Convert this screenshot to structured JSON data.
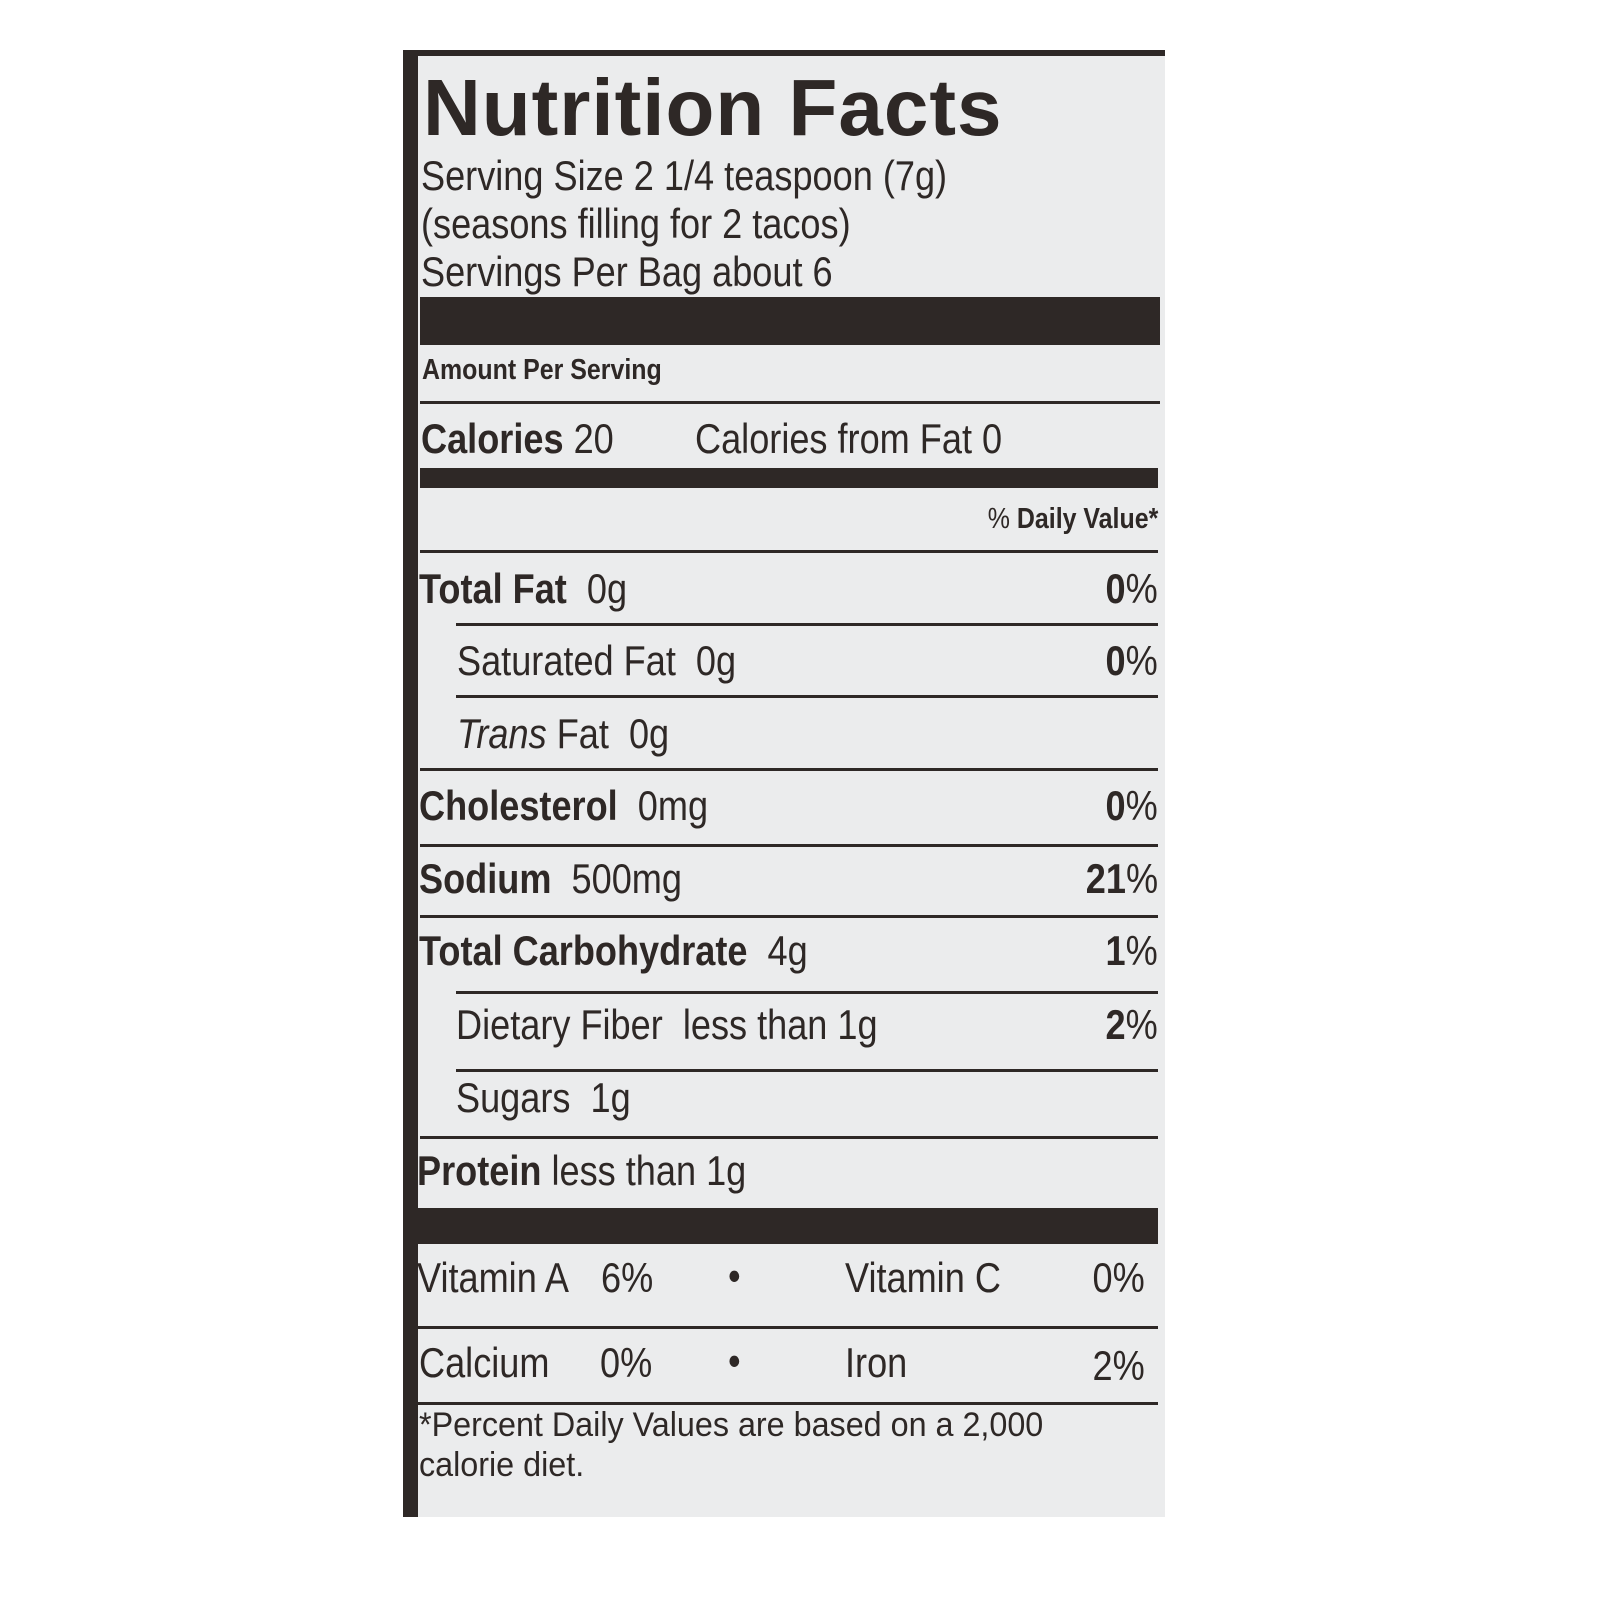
{
  "title": "Nutrition Facts",
  "serving_size": "Serving Size 2 1/4 teaspoon (7g)",
  "serving_note": "(seasons filling for 2 tacos)",
  "servings_per": "Servings Per Bag about 6",
  "amount_per_serving": "Amount Per Serving",
  "calories": {
    "label": "Calories",
    "value": "20",
    "from_fat": "Calories from Fat 0"
  },
  "daily_value_header": {
    "pct": "%",
    "label": "Daily Value*"
  },
  "nutrients": [
    {
      "label": "Total Fat",
      "amount": "0g",
      "dv": "0"
    },
    {
      "label": "Saturated Fat",
      "amount": "0g",
      "dv": "0"
    },
    {
      "label_italic": "Trans",
      "label": "Fat",
      "amount": "0g"
    },
    {
      "label": "Cholesterol",
      "amount": "0mg",
      "dv": "0"
    },
    {
      "label": "Sodium",
      "amount": "500mg",
      "dv": "21"
    },
    {
      "label": "Total Carbohydrate",
      "amount": "4g",
      "dv": "1"
    },
    {
      "label": "Dietary Fiber",
      "amount": "less than 1g",
      "dv": "2"
    },
    {
      "label": "Sugars",
      "amount": "1g"
    },
    {
      "label": "Protein",
      "amount": "less than 1g"
    }
  ],
  "pct_sign": "%",
  "vitamins": [
    {
      "label": "Vitamin A",
      "value": "6%"
    },
    {
      "label": "Vitamin C",
      "value": "0%"
    },
    {
      "label": "Calcium",
      "value": "0%"
    },
    {
      "label": "Iron",
      "value": "2%"
    }
  ],
  "bullet": "•",
  "footnote": [
    "*Percent Daily Values are based on a 2,000",
    "calorie diet."
  ]
}
